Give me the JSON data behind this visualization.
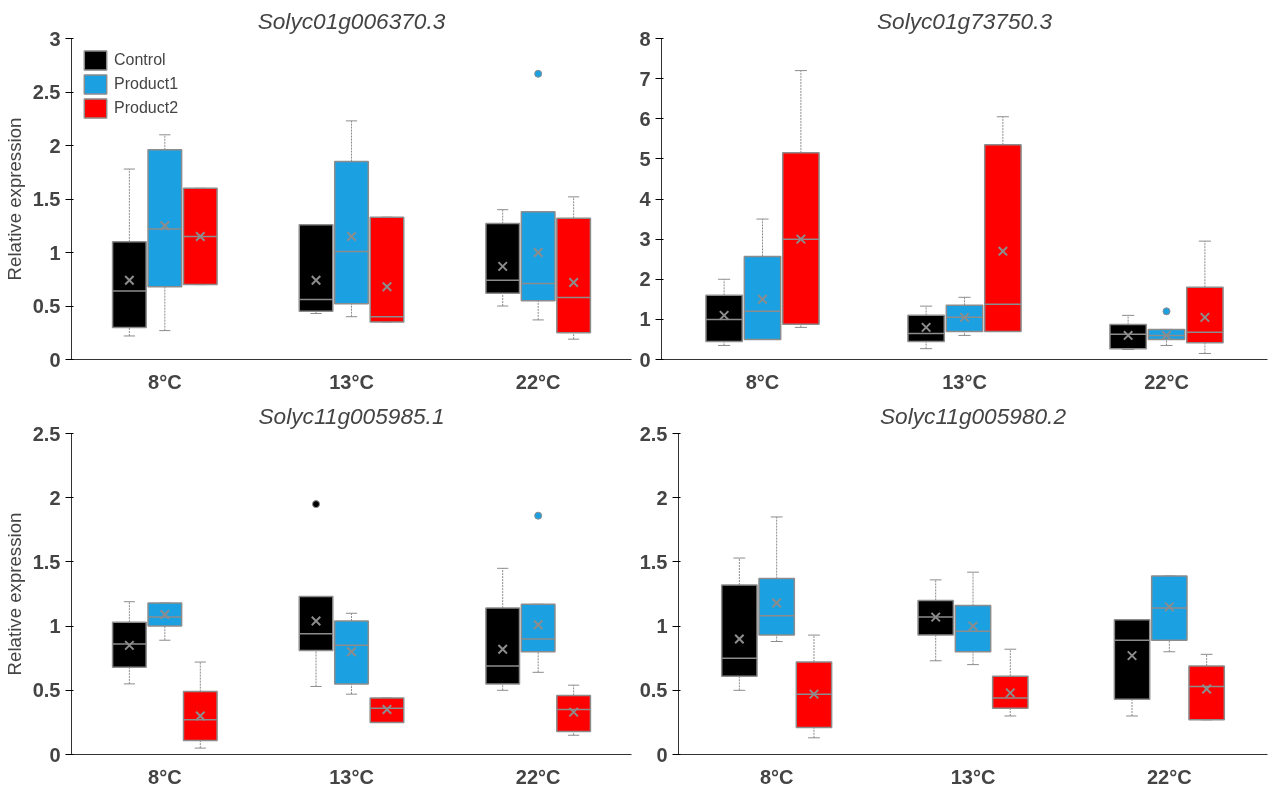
{
  "chart_data": [
    {
      "type": "box",
      "title": "Solyc01g006370.3",
      "ylabel": "Relative expression",
      "categories": [
        "8°C",
        "13°C",
        "22°C"
      ],
      "ylim": [
        0,
        3
      ],
      "yticks": [
        0,
        0.5,
        1,
        1.5,
        2,
        2.5,
        3
      ],
      "legend": "top left",
      "grid": false,
      "series": [
        {
          "name": "Control",
          "color": "#000000",
          "boxes": [
            {
              "low": 0.22,
              "q1": 0.3,
              "median": 0.64,
              "q3": 1.1,
              "high": 1.78,
              "mean": 0.74
            },
            {
              "low": 0.43,
              "q1": 0.45,
              "median": 0.56,
              "q3": 1.26,
              "high": 1.26,
              "mean": 0.74
            },
            {
              "low": 0.5,
              "q1": 0.62,
              "median": 0.74,
              "q3": 1.27,
              "high": 1.4,
              "mean": 0.87
            }
          ]
        },
        {
          "name": "Product1",
          "color": "#1ba1e2",
          "boxes": [
            {
              "low": 0.27,
              "q1": 0.68,
              "median": 1.22,
              "q3": 1.96,
              "high": 2.1,
              "mean": 1.25
            },
            {
              "low": 0.4,
              "q1": 0.52,
              "median": 1.01,
              "q3": 1.85,
              "high": 2.23,
              "mean": 1.15
            },
            {
              "low": 0.37,
              "q1": 0.55,
              "median": 0.71,
              "q3": 1.38,
              "high": 1.38,
              "mean": 1.0,
              "outliers": [
                2.67
              ]
            }
          ]
        },
        {
          "name": "Product2",
          "color": "#ff0000",
          "boxes": [
            {
              "low": 0.7,
              "q1": 0.7,
              "median": 1.15,
              "q3": 1.6,
              "high": 1.6,
              "mean": 1.15
            },
            {
              "low": 0.35,
              "q1": 0.35,
              "median": 0.4,
              "q3": 1.33,
              "high": 1.33,
              "mean": 0.68
            },
            {
              "low": 0.19,
              "q1": 0.25,
              "median": 0.58,
              "q3": 1.32,
              "high": 1.52,
              "mean": 0.72
            }
          ]
        }
      ]
    },
    {
      "type": "box",
      "title": "Solyc01g73750.3",
      "categories": [
        "8°C",
        "13°C",
        "22°C"
      ],
      "ylim": [
        0,
        8
      ],
      "yticks": [
        0,
        1,
        2,
        3,
        4,
        5,
        6,
        7,
        8
      ],
      "grid": false,
      "series": [
        {
          "color": "#000000",
          "boxes": [
            {
              "low": 0.35,
              "q1": 0.45,
              "median": 1.0,
              "q3": 1.6,
              "high": 2.0,
              "mean": 1.1
            },
            {
              "low": 0.27,
              "q1": 0.45,
              "median": 0.65,
              "q3": 1.1,
              "high": 1.33,
              "mean": 0.8
            },
            {
              "low": 0.25,
              "q1": 0.27,
              "median": 0.63,
              "q3": 0.87,
              "high": 1.1,
              "mean": 0.6
            }
          ]
        },
        {
          "color": "#1ba1e2",
          "boxes": [
            {
              "low": 0.5,
              "q1": 0.5,
              "median": 1.2,
              "q3": 2.57,
              "high": 3.5,
              "mean": 1.5
            },
            {
              "low": 0.6,
              "q1": 0.7,
              "median": 1.05,
              "q3": 1.35,
              "high": 1.55,
              "mean": 1.05
            },
            {
              "low": 0.35,
              "q1": 0.5,
              "median": 0.6,
              "q3": 0.75,
              "high": 0.75,
              "mean": 0.6,
              "outliers": [
                1.2
              ]
            }
          ]
        },
        {
          "color": "#ff0000",
          "boxes": [
            {
              "low": 0.8,
              "q1": 0.88,
              "median": 3.0,
              "q3": 5.15,
              "high": 7.2,
              "mean": 3.0
            },
            {
              "low": 0.7,
              "q1": 0.7,
              "median": 1.38,
              "q3": 5.35,
              "high": 6.05,
              "mean": 2.7
            },
            {
              "low": 0.15,
              "q1": 0.42,
              "median": 0.68,
              "q3": 1.8,
              "high": 2.95,
              "mean": 1.05
            }
          ]
        }
      ]
    },
    {
      "type": "box",
      "title": "Solyc11g005985.1",
      "ylabel": "Relative expression",
      "categories": [
        "8°C",
        "13°C",
        "22°C"
      ],
      "ylim": [
        0,
        2.5
      ],
      "yticks": [
        0,
        0.5,
        1,
        1.5,
        2,
        2.5
      ],
      "grid": false,
      "series": [
        {
          "color": "#000000",
          "boxes": [
            {
              "low": 0.55,
              "q1": 0.68,
              "median": 0.86,
              "q3": 1.03,
              "high": 1.19,
              "mean": 0.85
            },
            {
              "low": 0.53,
              "q1": 0.81,
              "median": 0.94,
              "q3": 1.23,
              "high": 1.23,
              "mean": 1.04,
              "outliers": [
                1.95
              ]
            },
            {
              "low": 0.5,
              "q1": 0.55,
              "median": 0.69,
              "q3": 1.14,
              "high": 1.45,
              "mean": 0.82
            }
          ]
        },
        {
          "color": "#1ba1e2",
          "boxes": [
            {
              "low": 0.89,
              "q1": 1.0,
              "median": 1.07,
              "q3": 1.18,
              "high": 1.18,
              "mean": 1.09
            },
            {
              "low": 0.47,
              "q1": 0.55,
              "median": 0.85,
              "q3": 1.04,
              "high": 1.1,
              "mean": 0.8
            },
            {
              "low": 0.64,
              "q1": 0.8,
              "median": 0.9,
              "q3": 1.17,
              "high": 1.17,
              "mean": 1.01,
              "outliers": [
                1.86
              ]
            }
          ]
        },
        {
          "color": "#ff0000",
          "boxes": [
            {
              "low": 0.05,
              "q1": 0.11,
              "median": 0.27,
              "q3": 0.49,
              "high": 0.72,
              "mean": 0.3
            },
            {
              "low": 0.25,
              "q1": 0.25,
              "median": 0.36,
              "q3": 0.44,
              "high": 0.44,
              "mean": 0.35
            },
            {
              "low": 0.15,
              "q1": 0.18,
              "median": 0.35,
              "q3": 0.46,
              "high": 0.54,
              "mean": 0.33
            }
          ]
        }
      ]
    },
    {
      "type": "box",
      "title": "Solyc11g005980.2",
      "categories": [
        "8°C",
        "13°C",
        "22°C"
      ],
      "ylim": [
        0,
        2.5
      ],
      "yticks": [
        0,
        0.5,
        1,
        1.5,
        2,
        2.5
      ],
      "grid": false,
      "series": [
        {
          "color": "#000000",
          "boxes": [
            {
              "low": 0.5,
              "q1": 0.61,
              "median": 0.75,
              "q3": 1.32,
              "high": 1.53,
              "mean": 0.9
            },
            {
              "low": 0.73,
              "q1": 0.93,
              "median": 1.07,
              "q3": 1.2,
              "high": 1.36,
              "mean": 1.07
            },
            {
              "low": 0.3,
              "q1": 0.43,
              "median": 0.89,
              "q3": 1.05,
              "high": 1.05,
              "mean": 0.77
            }
          ]
        },
        {
          "color": "#1ba1e2",
          "boxes": [
            {
              "low": 0.88,
              "q1": 0.93,
              "median": 1.08,
              "q3": 1.37,
              "high": 1.85,
              "mean": 1.18
            },
            {
              "low": 0.7,
              "q1": 0.8,
              "median": 0.96,
              "q3": 1.16,
              "high": 1.42,
              "mean": 1.0
            },
            {
              "low": 0.8,
              "q1": 0.89,
              "median": 1.14,
              "q3": 1.39,
              "high": 1.39,
              "mean": 1.15
            }
          ]
        },
        {
          "color": "#ff0000",
          "boxes": [
            {
              "low": 0.13,
              "q1": 0.21,
              "median": 0.47,
              "q3": 0.72,
              "high": 0.93,
              "mean": 0.47
            },
            {
              "low": 0.3,
              "q1": 0.36,
              "median": 0.44,
              "q3": 0.61,
              "high": 0.82,
              "mean": 0.48
            },
            {
              "low": 0.27,
              "q1": 0.27,
              "median": 0.53,
              "q3": 0.69,
              "high": 0.78,
              "mean": 0.51
            }
          ]
        }
      ]
    }
  ]
}
